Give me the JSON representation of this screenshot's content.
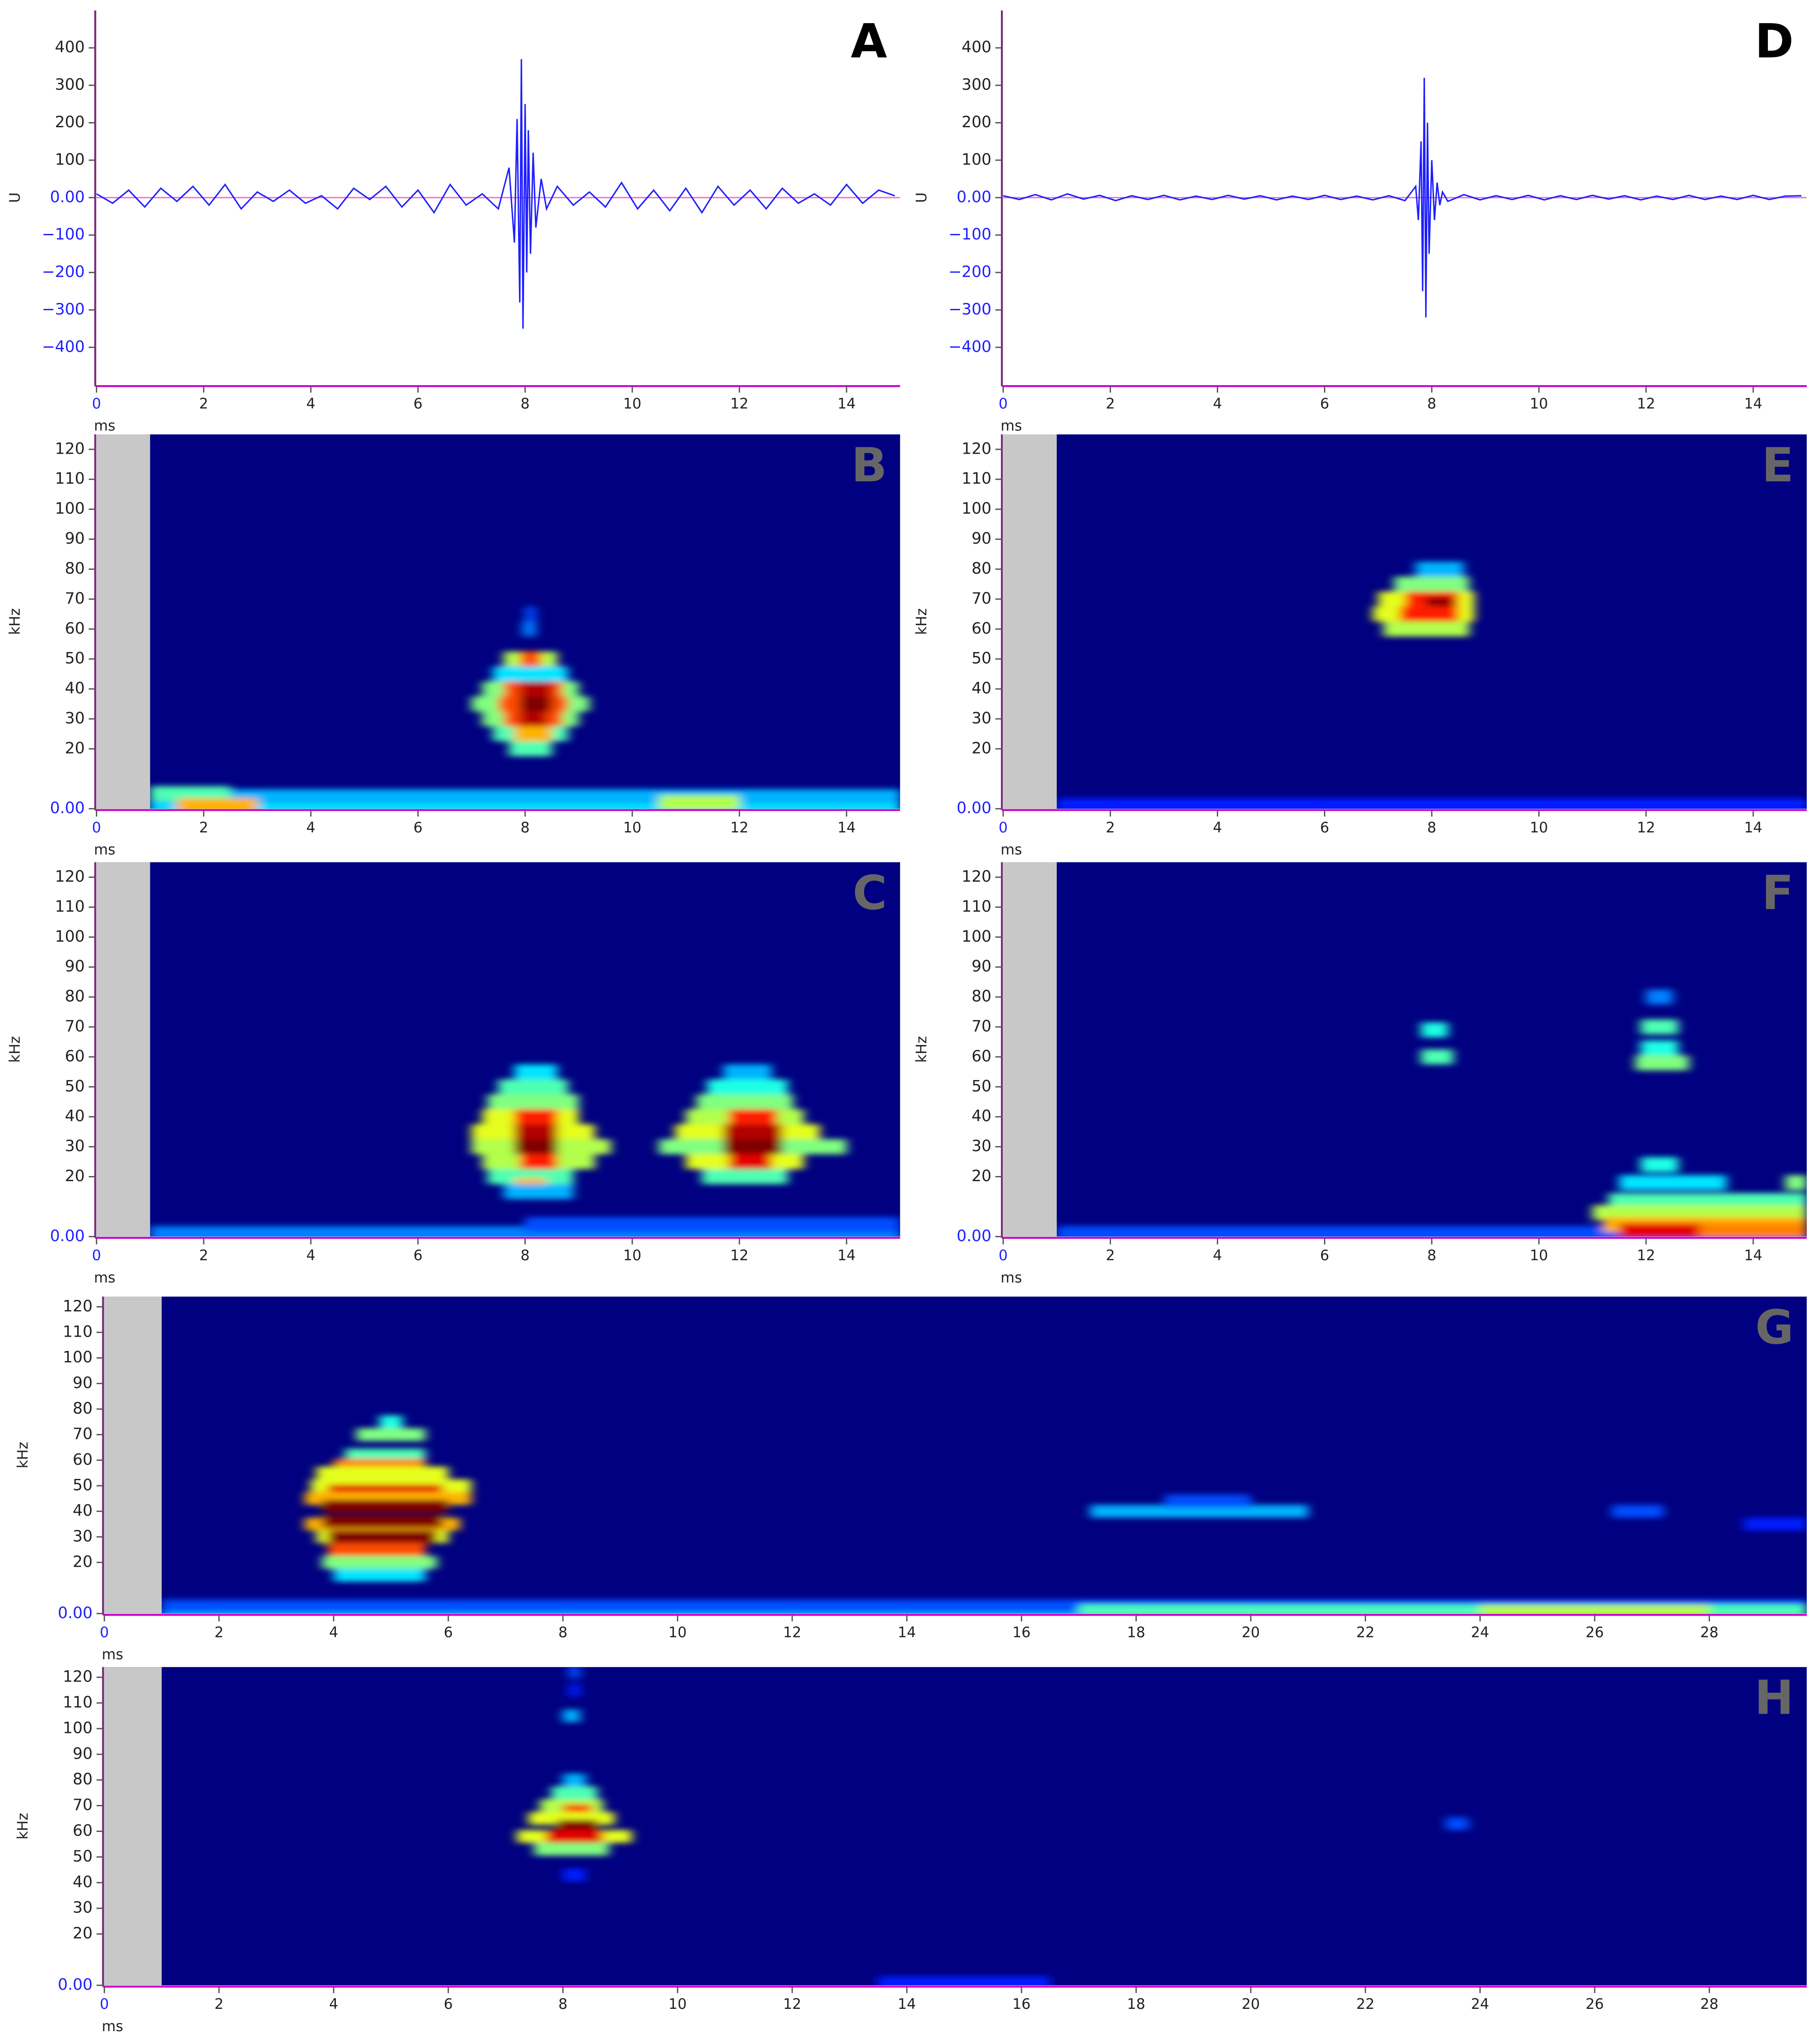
{
  "chart_data": [
    {
      "type": "line",
      "label": "A",
      "label_color": "#000000",
      "xlabel": "ms",
      "ylabel": "U",
      "color": "#1f1fff",
      "xlim": [
        0,
        15
      ],
      "xticks": [
        0,
        2,
        4,
        6,
        8,
        10,
        12,
        14
      ],
      "ylim": [
        -500,
        500
      ],
      "yticks": [
        {
          "value": -400,
          "label": "−400"
        },
        {
          "value": -300,
          "label": "−300"
        },
        {
          "value": -200,
          "label": "−200"
        },
        {
          "value": -100,
          "label": "−100"
        },
        {
          "value": 0,
          "label": "0.00"
        },
        100,
        200,
        300,
        400
      ],
      "x": [
        0,
        0.3,
        0.6,
        0.9,
        1.2,
        1.5,
        1.8,
        2.1,
        2.4,
        2.7,
        3.0,
        3.3,
        3.6,
        3.9,
        4.2,
        4.5,
        4.8,
        5.1,
        5.4,
        5.7,
        6.0,
        6.3,
        6.6,
        6.9,
        7.2,
        7.5,
        7.7,
        7.8,
        7.85,
        7.9,
        7.93,
        7.96,
        8.0,
        8.03,
        8.06,
        8.1,
        8.15,
        8.2,
        8.3,
        8.4,
        8.6,
        8.9,
        9.2,
        9.5,
        9.8,
        10.1,
        10.4,
        10.7,
        11.0,
        11.3,
        11.6,
        11.9,
        12.2,
        12.5,
        12.8,
        13.1,
        13.4,
        13.7,
        14.0,
        14.3,
        14.6,
        14.9
      ],
      "values": [
        10,
        -15,
        20,
        -25,
        25,
        -10,
        30,
        -20,
        35,
        -30,
        15,
        -10,
        20,
        -15,
        5,
        -30,
        25,
        -5,
        30,
        -25,
        20,
        -40,
        35,
        -20,
        10,
        -30,
        80,
        -120,
        210,
        -280,
        370,
        -350,
        250,
        -200,
        180,
        -150,
        120,
        -80,
        50,
        -30,
        30,
        -20,
        15,
        -25,
        40,
        -30,
        20,
        -35,
        25,
        -40,
        30,
        -20,
        20,
        -30,
        25,
        -15,
        10,
        -20,
        35,
        -15,
        20,
        5
      ]
    },
    {
      "type": "heatmap",
      "label": "B",
      "label_color": "#666666",
      "xlabel": "ms",
      "ylabel": "kHz",
      "xlim": [
        0,
        15
      ],
      "xticks": [
        0,
        2,
        4,
        6,
        8,
        10,
        12,
        14
      ],
      "ylim": [
        0,
        125
      ],
      "yticks": [
        {
          "value": 0,
          "label": "0.00"
        },
        20,
        30,
        40,
        50,
        60,
        70,
        80,
        90,
        100,
        110,
        120
      ],
      "mask": [
        0,
        1
      ],
      "run_height": 5,
      "runs": [
        [
          1,
          15,
          1,
          0.35
        ],
        [
          1,
          15,
          4,
          0.3
        ],
        [
          1,
          2.5,
          5,
          0.45
        ],
        [
          1.5,
          3,
          1,
          0.7
        ],
        [
          10.5,
          12,
          2,
          0.55
        ],
        [
          7.95,
          8.2,
          60,
          0.25
        ],
        [
          8.0,
          8.2,
          65,
          0.2
        ],
        [
          7.6,
          8.6,
          50,
          0.55
        ],
        [
          7.9,
          8.3,
          50,
          0.8
        ],
        [
          7.4,
          8.8,
          45,
          0.35
        ],
        [
          7.2,
          9.0,
          40,
          0.5
        ],
        [
          7.6,
          8.7,
          40,
          0.8
        ],
        [
          7.9,
          8.5,
          40,
          0.95
        ],
        [
          7.0,
          9.2,
          35,
          0.5
        ],
        [
          7.5,
          8.8,
          35,
          0.8
        ],
        [
          7.9,
          8.5,
          35,
          1
        ],
        [
          7.2,
          9.0,
          30,
          0.5
        ],
        [
          7.6,
          8.7,
          30,
          0.8
        ],
        [
          7.9,
          8.4,
          30,
          0.95
        ],
        [
          7.4,
          8.8,
          25,
          0.45
        ],
        [
          7.8,
          8.5,
          25,
          0.7
        ],
        [
          7.7,
          8.5,
          20,
          0.45
        ]
      ]
    },
    {
      "type": "heatmap",
      "label": "C",
      "label_color": "#666666",
      "xlabel": "ms",
      "ylabel": "kHz",
      "xlim": [
        0,
        15
      ],
      "xticks": [
        0,
        2,
        4,
        6,
        8,
        10,
        12,
        14
      ],
      "ylim": [
        0,
        125
      ],
      "yticks": [
        {
          "value": 0,
          "label": "0.00"
        },
        20,
        30,
        40,
        50,
        60,
        70,
        80,
        90,
        100,
        110,
        120
      ],
      "mask": [
        0,
        1
      ],
      "run_height": 5,
      "runs": [
        [
          1,
          15,
          1,
          0.25
        ],
        [
          8,
          15,
          4,
          0.2
        ],
        [
          7.8,
          8.6,
          55,
          0.35
        ],
        [
          7.5,
          8.8,
          50,
          0.45
        ],
        [
          7.3,
          9.0,
          45,
          0.5
        ],
        [
          7.2,
          9.0,
          40,
          0.6
        ],
        [
          7.8,
          8.6,
          40,
          0.85
        ],
        [
          7.0,
          9.3,
          35,
          0.6
        ],
        [
          7.8,
          8.6,
          35,
          0.95
        ],
        [
          7.0,
          9.6,
          30,
          0.55
        ],
        [
          7.8,
          8.6,
          30,
          1
        ],
        [
          7.2,
          9.3,
          25,
          0.55
        ],
        [
          7.9,
          8.6,
          25,
          0.85
        ],
        [
          7.3,
          8.9,
          20,
          0.45
        ],
        [
          7.8,
          8.4,
          17,
          0.7
        ],
        [
          7.6,
          8.9,
          15,
          0.3
        ],
        [
          11.7,
          12.6,
          55,
          0.3
        ],
        [
          11.4,
          12.9,
          50,
          0.4
        ],
        [
          11.2,
          13.0,
          45,
          0.5
        ],
        [
          11.0,
          13.2,
          40,
          0.55
        ],
        [
          11.8,
          12.7,
          40,
          0.85
        ],
        [
          10.8,
          13.5,
          35,
          0.6
        ],
        [
          11.7,
          12.8,
          35,
          0.95
        ],
        [
          10.5,
          14,
          30,
          0.5
        ],
        [
          11.7,
          12.8,
          30,
          1
        ],
        [
          11.0,
          13.2,
          25,
          0.6
        ],
        [
          11.8,
          12.6,
          25,
          0.9
        ],
        [
          11.3,
          12.9,
          20,
          0.45
        ]
      ]
    },
    {
      "type": "line",
      "label": "D",
      "label_color": "#000000",
      "xlabel": "ms",
      "ylabel": "U",
      "color": "#1f1fff",
      "xlim": [
        0,
        15
      ],
      "xticks": [
        0,
        2,
        4,
        6,
        8,
        10,
        12,
        14
      ],
      "ylim": [
        -500,
        500
      ],
      "yticks": [
        {
          "value": -400,
          "label": "−400"
        },
        {
          "value": -300,
          "label": "−300"
        },
        {
          "value": -200,
          "label": "−200"
        },
        {
          "value": -100,
          "label": "−100"
        },
        {
          "value": 0,
          "label": "0.00"
        },
        100,
        200,
        300,
        400
      ],
      "x": [
        0,
        0.3,
        0.6,
        0.9,
        1.2,
        1.5,
        1.8,
        2.1,
        2.4,
        2.7,
        3.0,
        3.3,
        3.6,
        3.9,
        4.2,
        4.5,
        4.8,
        5.1,
        5.4,
        5.7,
        6.0,
        6.3,
        6.6,
        6.9,
        7.2,
        7.5,
        7.7,
        7.75,
        7.8,
        7.83,
        7.86,
        7.89,
        7.92,
        7.95,
        8.0,
        8.05,
        8.1,
        8.15,
        8.2,
        8.3,
        8.6,
        8.9,
        9.2,
        9.5,
        9.8,
        10.1,
        10.4,
        10.7,
        11.0,
        11.3,
        11.6,
        11.9,
        12.2,
        12.5,
        12.8,
        13.1,
        13.4,
        13.7,
        14.0,
        14.3,
        14.6,
        14.9
      ],
      "values": [
        5,
        -5,
        8,
        -6,
        10,
        -4,
        6,
        -8,
        5,
        -5,
        6,
        -6,
        4,
        -5,
        6,
        -4,
        5,
        -6,
        4,
        -5,
        6,
        -5,
        4,
        -6,
        5,
        -8,
        30,
        -60,
        150,
        -250,
        320,
        -320,
        200,
        -150,
        100,
        -60,
        40,
        -20,
        15,
        -10,
        8,
        -6,
        5,
        -5,
        6,
        -6,
        5,
        -5,
        6,
        -4,
        5,
        -6,
        4,
        -5,
        6,
        -5,
        4,
        -5,
        6,
        -5,
        4,
        5
      ]
    },
    {
      "type": "heatmap",
      "label": "E",
      "label_color": "#666666",
      "xlabel": "ms",
      "ylabel": "kHz",
      "xlim": [
        0,
        15
      ],
      "xticks": [
        0,
        2,
        4,
        6,
        8,
        10,
        12,
        14
      ],
      "ylim": [
        0,
        125
      ],
      "yticks": [
        {
          "value": 0,
          "label": "0.00"
        },
        20,
        30,
        40,
        50,
        60,
        70,
        80,
        90,
        100,
        110,
        120
      ],
      "mask": [
        0,
        1
      ],
      "run_height": 5,
      "runs": [
        [
          1,
          15,
          1,
          0.15
        ],
        [
          7.7,
          8.6,
          80,
          0.3
        ],
        [
          7.3,
          8.7,
          75,
          0.5
        ],
        [
          7.0,
          8.8,
          70,
          0.6
        ],
        [
          7.5,
          8.5,
          70,
          0.85
        ],
        [
          7.9,
          8.4,
          68,
          1
        ],
        [
          6.9,
          8.8,
          65,
          0.6
        ],
        [
          7.4,
          8.5,
          65,
          0.85
        ],
        [
          7.1,
          8.7,
          60,
          0.55
        ]
      ]
    },
    {
      "type": "heatmap",
      "label": "F",
      "label_color": "#666666",
      "xlabel": "ms",
      "ylabel": "kHz",
      "xlim": [
        0,
        15
      ],
      "xticks": [
        0,
        2,
        4,
        6,
        8,
        10,
        12,
        14
      ],
      "ylim": [
        0,
        125
      ],
      "yticks": [
        {
          "value": 0,
          "label": "0.00"
        },
        20,
        30,
        40,
        50,
        60,
        70,
        80,
        90,
        100,
        110,
        120
      ],
      "mask": [
        0,
        1
      ],
      "run_height": 5,
      "runs": [
        [
          1,
          15,
          1,
          0.2
        ],
        [
          7.8,
          8.3,
          69,
          0.4
        ],
        [
          7.8,
          8.4,
          60,
          0.45
        ],
        [
          12,
          12.5,
          80,
          0.25
        ],
        [
          11.9,
          12.6,
          70,
          0.45
        ],
        [
          11.9,
          12.6,
          63,
          0.4
        ],
        [
          11.8,
          12.8,
          58,
          0.5
        ],
        [
          11.9,
          12.6,
          24,
          0.4
        ],
        [
          11.5,
          13.5,
          18,
          0.35
        ],
        [
          14.6,
          15,
          18,
          0.5
        ],
        [
          11.3,
          15,
          12,
          0.45
        ],
        [
          11,
          15,
          8,
          0.55
        ],
        [
          11.2,
          15,
          4,
          0.7
        ],
        [
          13,
          15,
          2,
          0.75
        ],
        [
          11.5,
          13,
          2,
          0.9
        ]
      ]
    },
    {
      "type": "heatmap",
      "label": "G",
      "label_color": "#666666",
      "xlabel": "ms",
      "ylabel": "kHz",
      "xlim": [
        0,
        29.7
      ],
      "xticks": [
        0,
        2,
        4,
        6,
        8,
        10,
        12,
        14,
        16,
        18,
        20,
        22,
        24,
        26,
        28
      ],
      "ylim": [
        0,
        124
      ],
      "yticks": [
        {
          "value": 0,
          "label": "0.00"
        },
        20,
        30,
        40,
        50,
        60,
        70,
        80,
        90,
        100,
        110,
        120
      ],
      "mask": [
        0,
        1
      ],
      "run_height": 5,
      "runs": [
        [
          1,
          29.7,
          1,
          0.3
        ],
        [
          1,
          29.7,
          3,
          0.2
        ],
        [
          17,
          29.7,
          1,
          0.45
        ],
        [
          24,
          28,
          1,
          0.55
        ],
        [
          17.2,
          21,
          40,
          0.3
        ],
        [
          18.5,
          20,
          44,
          0.2
        ],
        [
          26.3,
          27.2,
          40,
          0.2
        ],
        [
          28.6,
          29.7,
          35,
          0.15
        ],
        [
          4.8,
          5.2,
          75,
          0.4
        ],
        [
          4.4,
          5.6,
          70,
          0.5
        ],
        [
          4.2,
          5.6,
          62,
          0.45
        ],
        [
          4,
          5.6,
          58,
          0.75
        ],
        [
          3.7,
          6.0,
          55,
          0.6
        ],
        [
          3.6,
          6.4,
          50,
          0.6
        ],
        [
          3.9,
          5.9,
          48,
          0.9
        ],
        [
          3.5,
          6.4,
          45,
          0.7
        ],
        [
          3.8,
          6.0,
          42,
          1
        ],
        [
          3.5,
          6.2,
          35,
          0.7
        ],
        [
          3.8,
          5.9,
          36,
          1
        ],
        [
          3.7,
          6.0,
          30,
          0.6
        ],
        [
          3.9,
          5.8,
          30,
          1
        ],
        [
          3.9,
          5.6,
          25,
          0.8
        ],
        [
          3.8,
          5.8,
          20,
          0.5
        ],
        [
          4.0,
          5.6,
          15,
          0.35
        ]
      ]
    },
    {
      "type": "heatmap",
      "label": "H",
      "label_color": "#666666",
      "xlabel": "ms",
      "ylabel": "kHz",
      "xlim": [
        0,
        29.7
      ],
      "xticks": [
        0,
        2,
        4,
        6,
        8,
        10,
        12,
        14,
        16,
        18,
        20,
        22,
        24,
        26,
        28
      ],
      "ylim": [
        0,
        124
      ],
      "yticks": [
        {
          "value": 0,
          "label": "0.00"
        },
        20,
        30,
        40,
        50,
        60,
        70,
        80,
        90,
        100,
        110,
        120
      ],
      "mask": [
        0,
        1
      ],
      "run_height": 5,
      "runs": [
        [
          13.5,
          16.5,
          1,
          0.15
        ],
        [
          8.1,
          8.3,
          122,
          0.2
        ],
        [
          8,
          8.3,
          105,
          0.3
        ],
        [
          8.1,
          8.3,
          115,
          0.15
        ],
        [
          8,
          8.4,
          80,
          0.3
        ],
        [
          7.8,
          8.6,
          75,
          0.45
        ],
        [
          7.6,
          8.7,
          70,
          0.55
        ],
        [
          8.0,
          8.5,
          68,
          0.85
        ],
        [
          7.4,
          8.9,
          65,
          0.6
        ],
        [
          7.9,
          8.6,
          62,
          1
        ],
        [
          7.2,
          9.2,
          58,
          0.6
        ],
        [
          7.7,
          8.7,
          58,
          0.9
        ],
        [
          7.5,
          8.8,
          53,
          0.5
        ],
        [
          8.0,
          8.4,
          43,
          0.15
        ],
        [
          23.4,
          23.8,
          63,
          0.2
        ]
      ]
    }
  ]
}
